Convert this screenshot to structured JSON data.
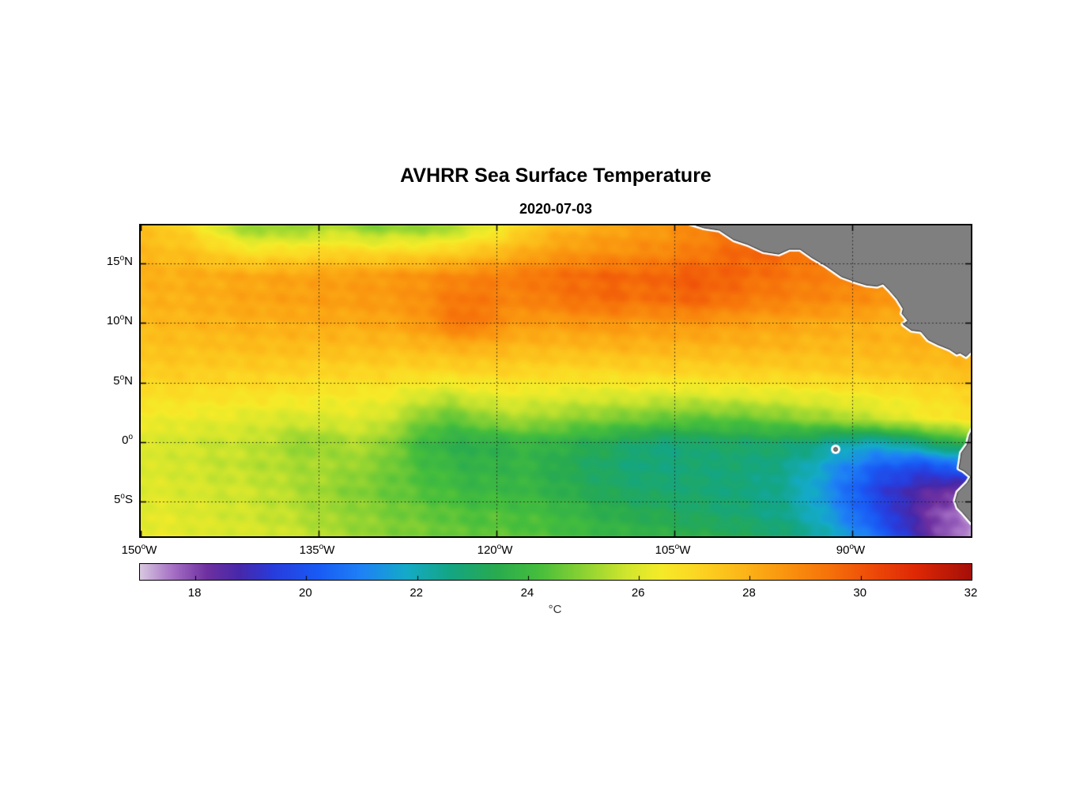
{
  "chart": {
    "title": "AVHRR Sea Surface Temperature",
    "subtitle": "2020-07-03",
    "colorbar": {
      "units": "°C",
      "min": 17,
      "max": 32,
      "ticks": [
        18,
        20,
        22,
        24,
        26,
        28,
        30,
        32
      ]
    }
  },
  "chart_data": {
    "type": "heatmap",
    "title": "AVHRR Sea Surface Temperature",
    "subtitle": "2020-07-03",
    "x_name": "longitude",
    "y_name": "latitude",
    "lon_range": [
      -150,
      -80
    ],
    "lat_range": [
      -7.9,
      18.2
    ],
    "xticks": [
      {
        "deg": 150,
        "hemi": "W",
        "lon": -150
      },
      {
        "deg": 135,
        "hemi": "W",
        "lon": -135
      },
      {
        "deg": 120,
        "hemi": "W",
        "lon": -120
      },
      {
        "deg": 105,
        "hemi": "W",
        "lon": -105
      },
      {
        "deg": 90,
        "hemi": "W",
        "lon": -90
      }
    ],
    "yticks": [
      {
        "deg": 15,
        "hemi": "N",
        "lat": 15
      },
      {
        "deg": 10,
        "hemi": "N",
        "lat": 10
      },
      {
        "deg": 5,
        "hemi": "N",
        "lat": 5
      },
      {
        "deg": 0,
        "hemi": "",
        "lat": 0
      },
      {
        "deg": 5,
        "hemi": "S",
        "lat": -5
      }
    ],
    "gridline_lons": [
      -135,
      -120,
      -105,
      -90
    ],
    "gridline_lats": [
      15,
      10,
      5,
      0,
      -5
    ],
    "grid_lons": [
      -150,
      -148,
      -146,
      -144,
      -142,
      -140,
      -138,
      -136,
      -134,
      -132,
      -130,
      -128,
      -126,
      -124,
      -122,
      -120,
      -118,
      -116,
      -114,
      -112,
      -110,
      -108,
      -106,
      -104,
      -102,
      -100,
      -98,
      -96,
      -94,
      -92,
      -90,
      -88,
      -86,
      -84,
      -82,
      -80
    ],
    "grid_lats": [
      18,
      16,
      14,
      12,
      10,
      8,
      6,
      4,
      2,
      0,
      -2,
      -4,
      -6,
      -8
    ],
    "sst_c": [
      [
        27.6,
        27.4,
        27.0,
        26.2,
        25.4,
        25.0,
        25.2,
        25.0,
        25.6,
        25.2,
        24.9,
        25.2,
        25.0,
        25.3,
        25.8,
        26.3,
        27.0,
        27.6,
        27.9,
        28.1,
        28.3,
        28.4,
        28.5,
        28.8,
        29.0,
        29.4,
        29.6,
        29.5,
        29.3,
        29.2,
        29.0,
        28.9,
        28.8,
        28.8,
        28.7,
        28.7
      ],
      [
        27.8,
        27.7,
        27.6,
        27.3,
        26.9,
        26.7,
        26.9,
        26.8,
        27.1,
        27.0,
        26.9,
        27.0,
        27.0,
        27.2,
        27.4,
        27.7,
        28.0,
        28.3,
        28.5,
        28.6,
        28.7,
        28.8,
        28.9,
        29.1,
        29.3,
        29.6,
        29.7,
        29.5,
        29.3,
        29.2,
        29.1,
        29.0,
        28.9,
        28.9,
        28.8,
        28.8
      ],
      [
        28.0,
        28.0,
        28.1,
        28.1,
        28.2,
        28.2,
        28.3,
        28.3,
        28.4,
        28.4,
        28.5,
        28.6,
        28.7,
        28.9,
        29.0,
        29.1,
        29.2,
        29.4,
        29.5,
        29.6,
        29.7,
        29.6,
        29.7,
        29.9,
        29.8,
        29.7,
        29.5,
        29.4,
        29.2,
        29.1,
        29.0,
        28.9,
        28.8,
        28.7,
        28.6,
        28.6
      ],
      [
        27.9,
        28.0,
        28.0,
        28.1,
        28.2,
        28.3,
        28.3,
        28.4,
        28.4,
        28.5,
        28.5,
        28.6,
        28.8,
        29.2,
        29.4,
        29.1,
        29.0,
        29.2,
        29.4,
        29.5,
        29.6,
        29.4,
        29.5,
        29.7,
        29.6,
        29.4,
        29.2,
        29.1,
        29.0,
        28.9,
        28.8,
        28.7,
        28.6,
        28.5,
        28.4,
        28.4
      ],
      [
        27.8,
        27.8,
        27.9,
        27.9,
        28.0,
        28.0,
        28.0,
        28.1,
        28.1,
        28.1,
        28.2,
        28.3,
        28.6,
        29.2,
        29.4,
        28.8,
        28.5,
        28.4,
        28.5,
        28.6,
        28.6,
        28.5,
        28.5,
        28.6,
        28.5,
        28.4,
        28.3,
        28.3,
        28.2,
        28.1,
        28.1,
        28.0,
        28.0,
        27.9,
        27.9,
        27.9
      ],
      [
        27.6,
        27.6,
        27.6,
        27.6,
        27.7,
        27.7,
        27.7,
        27.7,
        27.7,
        27.7,
        27.7,
        27.7,
        27.8,
        27.9,
        28.0,
        27.9,
        27.8,
        27.8,
        27.8,
        27.8,
        27.9,
        27.9,
        27.9,
        27.9,
        27.9,
        27.9,
        27.9,
        27.9,
        27.8,
        27.8,
        27.8,
        27.9,
        27.9,
        28.0,
        28.0,
        28.0
      ],
      [
        27.3,
        27.3,
        27.3,
        27.2,
        27.2,
        27.2,
        27.2,
        27.1,
        27.1,
        27.1,
        27.1,
        27.0,
        27.0,
        27.0,
        27.1,
        27.1,
        27.1,
        27.0,
        27.0,
        27.0,
        27.0,
        27.1,
        27.1,
        27.1,
        27.1,
        27.2,
        27.2,
        27.2,
        27.3,
        27.3,
        27.4,
        27.4,
        27.5,
        27.5,
        27.6,
        27.7
      ],
      [
        26.8,
        26.8,
        26.8,
        26.7,
        26.7,
        26.7,
        26.6,
        26.6,
        26.5,
        26.5,
        26.4,
        26.2,
        25.9,
        25.7,
        26.0,
        26.2,
        26.2,
        26.1,
        26.1,
        26.0,
        26.0,
        26.0,
        25.9,
        25.9,
        26.0,
        26.0,
        26.1,
        26.1,
        26.2,
        26.3,
        26.4,
        26.5,
        26.6,
        26.8,
        26.9,
        27.0
      ],
      [
        26.3,
        26.3,
        26.2,
        26.2,
        26.1,
        26.0,
        25.9,
        25.9,
        26.0,
        26.0,
        25.9,
        25.4,
        24.8,
        24.5,
        24.8,
        25.2,
        25.3,
        25.2,
        25.0,
        24.9,
        24.8,
        24.7,
        24.6,
        24.5,
        24.5,
        24.5,
        24.6,
        24.8,
        25.0,
        25.2,
        25.4,
        25.7,
        26.0,
        26.3,
        26.5,
        26.7
      ],
      [
        25.9,
        25.9,
        25.8,
        25.7,
        25.7,
        25.6,
        25.3,
        25.0,
        25.2,
        25.4,
        25.2,
        24.6,
        23.9,
        23.6,
        23.5,
        23.6,
        23.8,
        23.8,
        23.6,
        23.4,
        23.2,
        22.9,
        22.7,
        22.8,
        23.0,
        23.0,
        23.0,
        23.0,
        22.8,
        22.4,
        22.1,
        22.0,
        22.3,
        22.9,
        23.5,
        24.0
      ],
      [
        25.9,
        25.9,
        25.8,
        25.7,
        25.6,
        25.5,
        25.4,
        25.3,
        25.3,
        25.1,
        24.9,
        24.5,
        24.1,
        23.9,
        23.7,
        23.7,
        23.8,
        23.6,
        23.3,
        23.1,
        22.9,
        22.7,
        22.7,
        22.8,
        22.8,
        22.8,
        22.7,
        22.5,
        22.1,
        21.5,
        20.9,
        20.3,
        20.0,
        19.8,
        20.2,
        21.0
      ],
      [
        26.0,
        26.0,
        25.9,
        25.8,
        25.8,
        25.7,
        25.5,
        25.3,
        25.1,
        24.9,
        24.7,
        24.5,
        24.3,
        24.1,
        23.9,
        23.9,
        23.9,
        23.7,
        23.5,
        23.3,
        23.1,
        23.0,
        22.9,
        22.9,
        22.8,
        22.7,
        22.6,
        22.4,
        21.9,
        21.2,
        20.4,
        19.6,
        19.0,
        18.6,
        18.2,
        18.0
      ],
      [
        26.1,
        26.1,
        26.0,
        25.9,
        25.8,
        25.7,
        25.6,
        25.4,
        25.2,
        25.1,
        24.9,
        24.7,
        24.6,
        24.4,
        24.3,
        24.3,
        24.2,
        24.1,
        23.9,
        23.7,
        23.5,
        23.4,
        23.3,
        23.1,
        23.0,
        22.9,
        22.7,
        22.5,
        22.1,
        21.5,
        20.7,
        19.9,
        19.1,
        18.3,
        17.7,
        17.4
      ],
      [
        26.2,
        26.2,
        26.1,
        26.0,
        26.0,
        25.9,
        25.8,
        25.6,
        25.4,
        25.2,
        25.0,
        24.9,
        24.8,
        24.6,
        24.5,
        24.5,
        24.4,
        24.3,
        24.2,
        24.0,
        23.9,
        23.8,
        23.7,
        23.6,
        23.5,
        23.4,
        23.2,
        23.0,
        22.6,
        22.0,
        21.4,
        20.6,
        19.6,
        18.6,
        17.8,
        17.4
      ]
    ],
    "colormap_stops": [
      [
        17.0,
        "#D8C6E0"
      ],
      [
        17.6,
        "#A46EC4"
      ],
      [
        18.2,
        "#6E30A0"
      ],
      [
        18.8,
        "#4628AA"
      ],
      [
        19.4,
        "#283CDC"
      ],
      [
        20.2,
        "#195AF5"
      ],
      [
        21.0,
        "#1E82F5"
      ],
      [
        21.8,
        "#14AAC8"
      ],
      [
        22.6,
        "#14A582"
      ],
      [
        23.4,
        "#28AA50"
      ],
      [
        24.2,
        "#46BE3C"
      ],
      [
        25.0,
        "#8CD232"
      ],
      [
        25.8,
        "#D2E62D"
      ],
      [
        26.4,
        "#F5EB28"
      ],
      [
        27.0,
        "#FCD723"
      ],
      [
        27.8,
        "#FCB919"
      ],
      [
        28.6,
        "#FA960F"
      ],
      [
        29.4,
        "#F6730A"
      ],
      [
        30.2,
        "#EE4B08"
      ],
      [
        31.0,
        "#DE2805"
      ],
      [
        32.0,
        "#A50F08"
      ]
    ],
    "land_color": "#7F7F7F",
    "coast_halo_color": "#FFFFFF",
    "coast_line_color": "#2A2A2A",
    "land_polygons": {
      "central_america": [
        [
          -103.8,
          18.4
        ],
        [
          -102.5,
          18.0
        ],
        [
          -101.2,
          17.8
        ],
        [
          -100.0,
          17.0
        ],
        [
          -98.8,
          16.6
        ],
        [
          -97.5,
          16.0
        ],
        [
          -96.2,
          15.8
        ],
        [
          -95.3,
          16.2
        ],
        [
          -94.4,
          16.2
        ],
        [
          -93.4,
          15.5
        ],
        [
          -92.2,
          14.8
        ],
        [
          -90.9,
          13.9
        ],
        [
          -89.8,
          13.5
        ],
        [
          -88.8,
          13.2
        ],
        [
          -87.9,
          13.1
        ],
        [
          -87.4,
          13.3
        ],
        [
          -86.9,
          12.8
        ],
        [
          -86.2,
          12.0
        ],
        [
          -85.7,
          11.2
        ],
        [
          -85.8,
          10.8
        ],
        [
          -85.3,
          10.2
        ],
        [
          -85.7,
          9.9
        ],
        [
          -85.0,
          9.4
        ],
        [
          -84.2,
          9.3
        ],
        [
          -83.6,
          8.6
        ],
        [
          -82.8,
          8.2
        ],
        [
          -81.8,
          7.8
        ],
        [
          -81.2,
          7.4
        ],
        [
          -80.9,
          7.5
        ],
        [
          -80.4,
          7.2
        ],
        [
          -80.0,
          7.6
        ],
        [
          -78.0,
          7.6
        ],
        [
          -78.0,
          20.0
        ],
        [
          -104.5,
          20.0
        ]
      ],
      "south_america": [
        [
          -79.6,
          1.6
        ],
        [
          -80.1,
          0.6
        ],
        [
          -80.3,
          -0.2
        ],
        [
          -80.8,
          -0.9
        ],
        [
          -80.9,
          -1.6
        ],
        [
          -81.0,
          -2.2
        ],
        [
          -80.6,
          -2.4
        ],
        [
          -80.0,
          -2.9
        ],
        [
          -80.3,
          -3.4
        ],
        [
          -81.1,
          -4.2
        ],
        [
          -81.3,
          -4.9
        ],
        [
          -81.1,
          -5.5
        ],
        [
          -80.7,
          -5.9
        ],
        [
          -80.0,
          -6.7
        ],
        [
          -79.4,
          -7.4
        ],
        [
          -79.0,
          -8.0
        ],
        [
          -77.0,
          -9.0
        ],
        [
          -77.0,
          2.0
        ]
      ],
      "galapagos": [
        -91.4,
        -0.6
      ]
    }
  }
}
